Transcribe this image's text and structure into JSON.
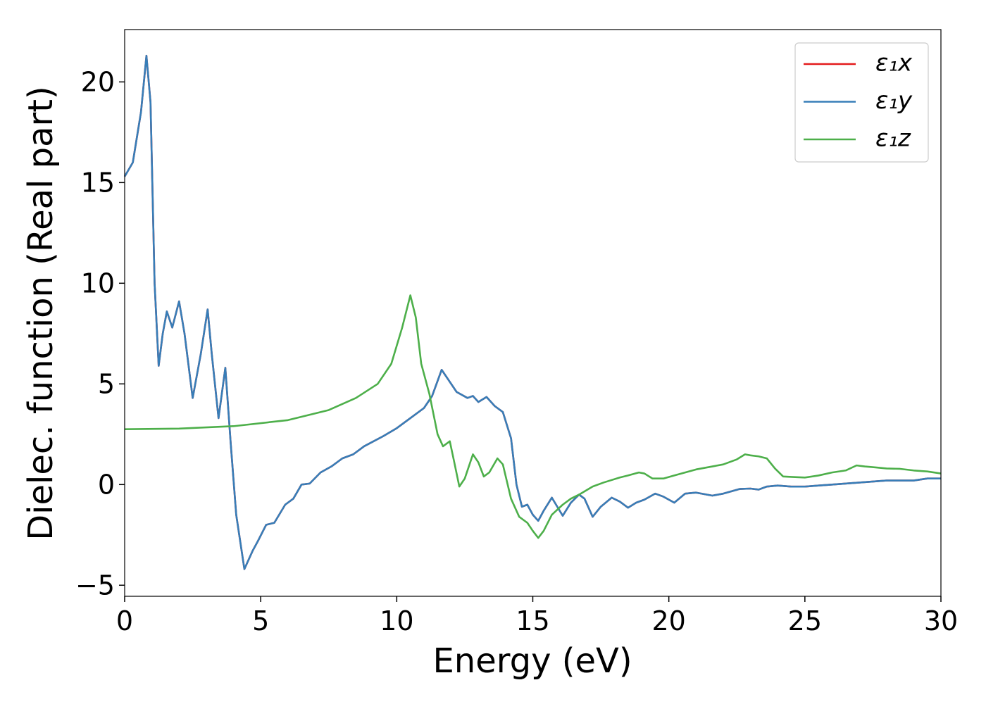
{
  "chart_data": {
    "type": "line",
    "xlabel": "Energy (eV)",
    "ylabel": "Dielec. function (Real part)",
    "xlim": [
      0,
      30
    ],
    "ylim": [
      -5.55,
      22.6
    ],
    "xticks": [
      0,
      5,
      10,
      15,
      20,
      25,
      30
    ],
    "yticks": [
      {
        "value": -5,
        "label": "−5"
      },
      0,
      5,
      10,
      15,
      20
    ],
    "legend": "upper right",
    "series": [
      {
        "name": "ε₁x",
        "color": "#e41a1c",
        "x": [
          0,
          0.3,
          0.6,
          0.8,
          0.95,
          1.1,
          1.25,
          1.4,
          1.55,
          1.75,
          2.0,
          2.2,
          2.5,
          2.8,
          3.05,
          3.2,
          3.45,
          3.7,
          3.9,
          4.1,
          4.4,
          4.7,
          4.9,
          5.2,
          5.5,
          5.9,
          6.2,
          6.5,
          6.8,
          7.2,
          7.6,
          8.0,
          8.4,
          8.8,
          9.5,
          10.0,
          10.5,
          11.0,
          11.3,
          11.65,
          11.9,
          12.2,
          12.6,
          12.8,
          13.0,
          13.3,
          13.6,
          13.9,
          14.2,
          14.4,
          14.6,
          14.8,
          15.0,
          15.2,
          15.4,
          15.7,
          16.1,
          16.4,
          16.7,
          16.9,
          17.2,
          17.5,
          17.9,
          18.2,
          18.5,
          18.8,
          19.1,
          19.5,
          19.8,
          20.2,
          20.6,
          21.0,
          21.6,
          22.0,
          22.6,
          23.0,
          23.3,
          23.6,
          24.0,
          24.5,
          25.0,
          25.5,
          26.0,
          27.0,
          28.0,
          29.0,
          29.5,
          30
        ],
        "values": [
          15.3,
          16,
          18.5,
          21.3,
          19,
          10,
          5.9,
          7.5,
          8.6,
          7.8,
          9.1,
          7.5,
          4.3,
          6.5,
          8.7,
          6.5,
          3.3,
          5.8,
          2.0,
          -1.5,
          -4.2,
          -3.3,
          -2.8,
          -2.0,
          -1.9,
          -1.0,
          -0.7,
          0.0,
          0.05,
          0.6,
          0.9,
          1.3,
          1.5,
          1.9,
          2.4,
          2.8,
          3.3,
          3.8,
          4.4,
          5.7,
          5.2,
          4.6,
          4.3,
          4.4,
          4.1,
          4.35,
          3.9,
          3.6,
          2.3,
          0,
          -1.1,
          -1.0,
          -1.5,
          -1.8,
          -1.3,
          -0.65,
          -1.55,
          -0.9,
          -0.5,
          -0.7,
          -1.6,
          -1.1,
          -0.65,
          -0.85,
          -1.15,
          -0.9,
          -0.75,
          -0.45,
          -0.6,
          -0.9,
          -0.45,
          -0.4,
          -0.55,
          -0.45,
          -0.22,
          -0.2,
          -0.25,
          -0.1,
          -0.05,
          -0.1,
          -0.1,
          -0.05,
          0.0,
          0.1,
          0.2,
          0.2,
          0.3,
          0.3
        ]
      },
      {
        "name": "ε₁y",
        "color": "#377eb8",
        "x": [
          0,
          0.3,
          0.6,
          0.8,
          0.95,
          1.1,
          1.25,
          1.4,
          1.55,
          1.75,
          2.0,
          2.2,
          2.5,
          2.8,
          3.05,
          3.2,
          3.45,
          3.7,
          3.9,
          4.1,
          4.4,
          4.7,
          4.9,
          5.2,
          5.5,
          5.9,
          6.2,
          6.5,
          6.8,
          7.2,
          7.6,
          8.0,
          8.4,
          8.8,
          9.5,
          10.0,
          10.5,
          11.0,
          11.3,
          11.65,
          11.9,
          12.2,
          12.6,
          12.8,
          13.0,
          13.3,
          13.6,
          13.9,
          14.2,
          14.4,
          14.6,
          14.8,
          15.0,
          15.2,
          15.4,
          15.7,
          16.1,
          16.4,
          16.7,
          16.9,
          17.2,
          17.5,
          17.9,
          18.2,
          18.5,
          18.8,
          19.1,
          19.5,
          19.8,
          20.2,
          20.6,
          21.0,
          21.6,
          22.0,
          22.6,
          23.0,
          23.3,
          23.6,
          24.0,
          24.5,
          25.0,
          25.5,
          26.0,
          27.0,
          28.0,
          29.0,
          29.5,
          30
        ],
        "values": [
          15.3,
          16,
          18.5,
          21.3,
          19,
          10,
          5.9,
          7.5,
          8.6,
          7.8,
          9.1,
          7.5,
          4.3,
          6.5,
          8.7,
          6.5,
          3.3,
          5.8,
          2.0,
          -1.5,
          -4.2,
          -3.3,
          -2.8,
          -2.0,
          -1.9,
          -1.0,
          -0.7,
          0.0,
          0.05,
          0.6,
          0.9,
          1.3,
          1.5,
          1.9,
          2.4,
          2.8,
          3.3,
          3.8,
          4.4,
          5.7,
          5.2,
          4.6,
          4.3,
          4.4,
          4.1,
          4.35,
          3.9,
          3.6,
          2.3,
          0,
          -1.1,
          -1.0,
          -1.5,
          -1.8,
          -1.3,
          -0.65,
          -1.55,
          -0.9,
          -0.5,
          -0.7,
          -1.6,
          -1.1,
          -0.65,
          -0.85,
          -1.15,
          -0.9,
          -0.75,
          -0.45,
          -0.6,
          -0.9,
          -0.45,
          -0.4,
          -0.55,
          -0.45,
          -0.22,
          -0.2,
          -0.25,
          -0.1,
          -0.05,
          -0.1,
          -0.1,
          -0.05,
          0.0,
          0.1,
          0.2,
          0.2,
          0.3,
          0.3
        ]
      },
      {
        "name": "ε₁z",
        "color": "#4daf4a",
        "x": [
          0,
          2,
          4,
          6,
          7.5,
          8.5,
          9.3,
          9.8,
          10.2,
          10.5,
          10.7,
          10.9,
          11.2,
          11.5,
          11.7,
          11.95,
          12.1,
          12.3,
          12.5,
          12.8,
          13.0,
          13.2,
          13.4,
          13.7,
          13.9,
          14.2,
          14.5,
          14.8,
          15.0,
          15.2,
          15.4,
          15.7,
          16.1,
          16.4,
          16.7,
          17.2,
          17.6,
          18.2,
          18.5,
          18.9,
          19.1,
          19.4,
          19.8,
          20.2,
          20.6,
          21.0,
          21.6,
          22.0,
          22.5,
          22.8,
          23.0,
          23.3,
          23.6,
          23.9,
          24.2,
          24.5,
          25.0,
          25.5,
          26.0,
          26.5,
          26.9,
          27.2,
          27.6,
          28.0,
          28.5,
          29.0,
          29.5,
          30
        ],
        "values": [
          2.75,
          2.78,
          2.9,
          3.2,
          3.7,
          4.3,
          5.0,
          6.0,
          7.8,
          9.4,
          8.3,
          6.0,
          4.5,
          2.5,
          1.9,
          2.15,
          1.2,
          -0.1,
          0.3,
          1.5,
          1.1,
          0.4,
          0.6,
          1.3,
          1.0,
          -0.7,
          -1.6,
          -1.9,
          -2.3,
          -2.65,
          -2.3,
          -1.5,
          -1.0,
          -0.7,
          -0.5,
          -0.1,
          0.1,
          0.35,
          0.45,
          0.6,
          0.55,
          0.3,
          0.3,
          0.45,
          0.6,
          0.75,
          0.9,
          1.0,
          1.25,
          1.5,
          1.45,
          1.4,
          1.3,
          0.8,
          0.4,
          0.38,
          0.35,
          0.45,
          0.6,
          0.7,
          0.95,
          0.9,
          0.85,
          0.8,
          0.78,
          0.7,
          0.65,
          0.55
        ]
      }
    ]
  }
}
